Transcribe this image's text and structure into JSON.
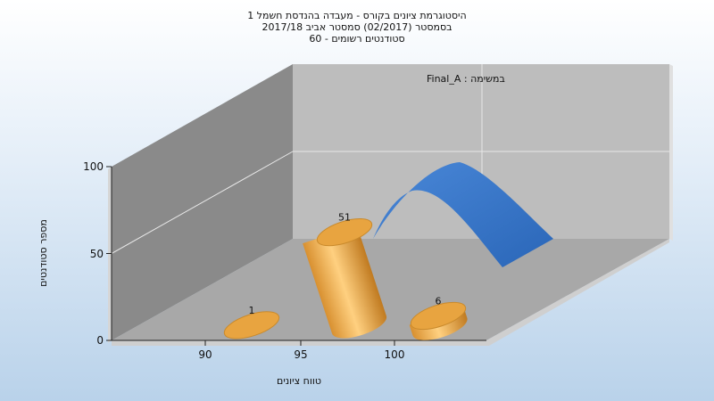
{
  "chart_data": {
    "type": "bar",
    "title_lines": [
      "היסטוגרמת ציונים בקורס - מעבדה בהנדסת חשמל 1",
      "בסמסטר  (02/2017)  סמסטר אביב 2017/18",
      "סטודנטים רשומים - 60"
    ],
    "annotation": "במשימה : Final_A",
    "xlabel": "טווח ציונים",
    "ylabel": "מספר סטודנטים",
    "x_ticks": [
      "90",
      "95",
      "100"
    ],
    "y_ticks": [
      "0",
      "50",
      "100"
    ],
    "ylim": [
      0,
      100
    ],
    "categories": [
      "90",
      "95",
      "100"
    ],
    "values": [
      1,
      51,
      6
    ],
    "value_labels": [
      "1",
      "51",
      "6"
    ],
    "grid": true,
    "curve_color": "#3a78c8",
    "bar_color": "#e8a440"
  }
}
